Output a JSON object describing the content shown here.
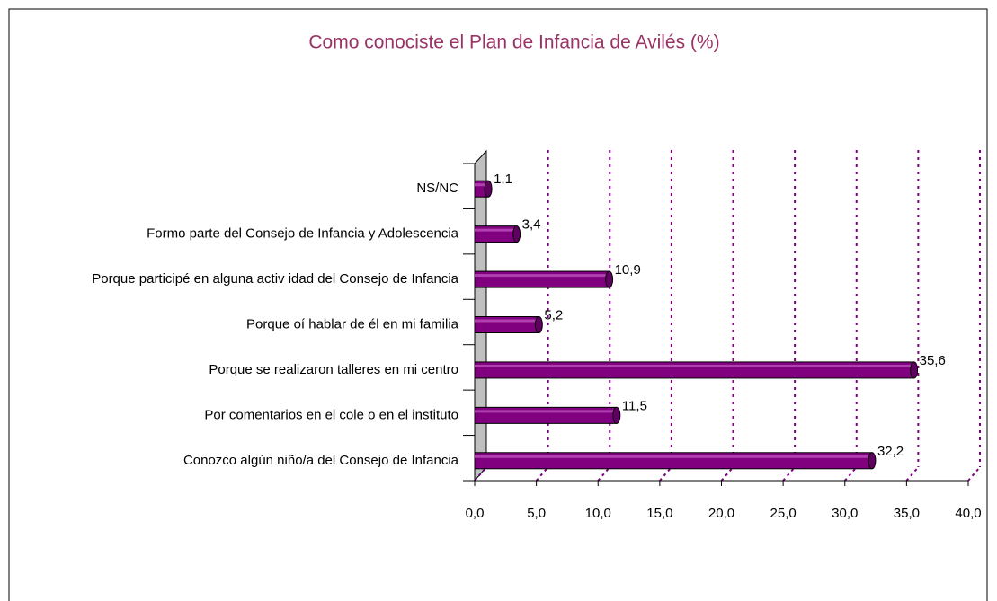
{
  "chart_data": {
    "type": "bar",
    "orientation": "horizontal",
    "title": "Como conociste el Plan de Infancia de Avilés (%)",
    "categories": [
      "NS/NC",
      "Formo parte del Consejo de Infancia y  Adolescencia",
      "Porque participé en alguna activ idad del Consejo de Infancia",
      "Porque oí hablar de él en mi familia",
      "Porque se realizaron talleres en mi centro",
      "Por comentarios en el cole o en el instituto",
      "Conozco algún niño/a del Consejo de Infancia"
    ],
    "values": [
      1.1,
      3.4,
      10.9,
      5.2,
      35.6,
      11.5,
      32.2
    ],
    "value_labels": [
      "1,1",
      "3,4",
      "10,9",
      "5,2",
      "35,6",
      "11,5",
      "32,2"
    ],
    "color": "#800080",
    "xlim": [
      0,
      40
    ],
    "xticks": [
      {
        "value": 0,
        "label": "0,0"
      },
      {
        "value": 5,
        "label": "5,0"
      },
      {
        "value": 10,
        "label": "10,0"
      },
      {
        "value": 15,
        "label": "15,0"
      },
      {
        "value": 20,
        "label": "20,0"
      },
      {
        "value": 25,
        "label": "25,0"
      },
      {
        "value": 30,
        "label": "30,0"
      },
      {
        "value": 35,
        "label": "35,0"
      },
      {
        "value": 40,
        "label": "40,0"
      }
    ],
    "grid": true
  }
}
